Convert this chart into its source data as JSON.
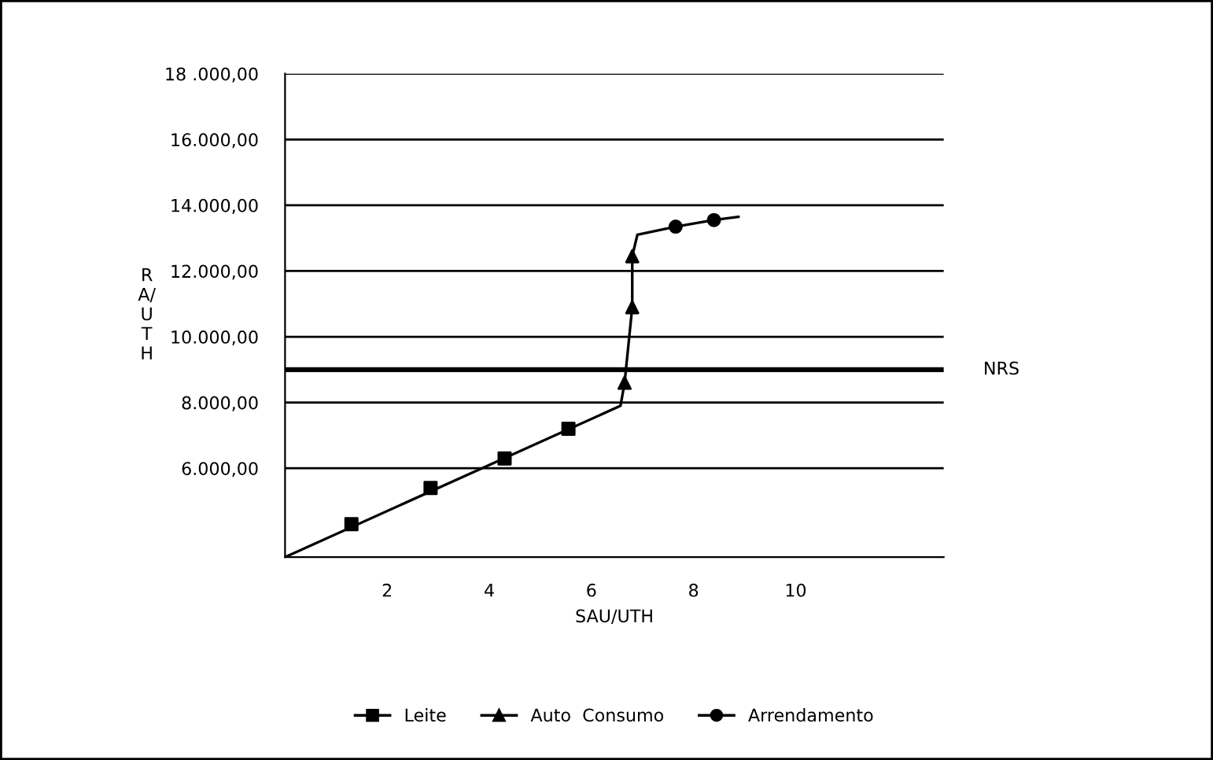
{
  "chart_data": {
    "type": "line",
    "xlabel": "SAU/UTH",
    "ylabel": "R\nA/\nU\nT\nH",
    "xlim": [
      0,
      12.9
    ],
    "xticks": [
      2,
      4,
      6,
      8,
      10
    ],
    "ylim": [
      3300,
      18000
    ],
    "yticks": [
      {
        "value": 6000,
        "label": "6.000,00"
      },
      {
        "value": 8000,
        "label": "8.000,00"
      },
      {
        "value": 10000,
        "label": "10.000,00"
      },
      {
        "value": 12000,
        "label": "12.000,00"
      },
      {
        "value": 14000,
        "label": "14.000,00"
      },
      {
        "value": 16000,
        "label": "16.000,00"
      },
      {
        "value": 18000,
        "label": "18 .000,00"
      }
    ],
    "grid": "y",
    "legend": "bottom",
    "series": [
      {
        "marker": "none",
        "color": "#000000",
        "x": [
          0,
          6.57,
          6.65,
          6.8,
          6.8,
          6.9,
          7.65,
          8.4,
          8.88
        ],
        "values": [
          3300,
          7900,
          8600,
          10900,
          12450,
          13100,
          13350,
          13550,
          13650
        ]
      },
      {
        "type": "scatter",
        "name": "Leite",
        "marker": "square",
        "color": "#000000",
        "x": [
          1.3,
          2.85,
          4.3,
          5.55
        ],
        "values": [
          4300,
          5400,
          6300,
          7200
        ]
      },
      {
        "type": "scatter",
        "name": "Auto  Consumo",
        "marker": "triangle",
        "color": "#000000",
        "x": [
          6.65,
          6.8,
          6.8
        ],
        "values": [
          8600,
          10900,
          12450
        ]
      },
      {
        "type": "scatter",
        "name": "Arrendamento",
        "marker": "circle",
        "color": "#000000",
        "x": [
          7.65,
          8.4
        ],
        "values": [
          13350,
          13550
        ]
      }
    ],
    "ref_lines": [
      {
        "axis": "y",
        "value": 9000,
        "label": "NRS",
        "color": "#000000"
      }
    ]
  }
}
